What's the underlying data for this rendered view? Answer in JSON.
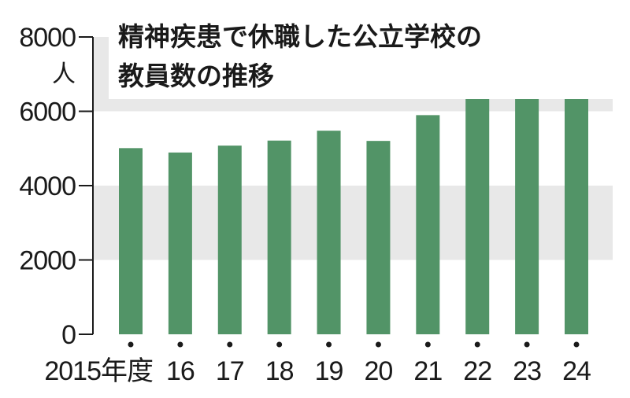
{
  "chart_data": {
    "type": "bar",
    "title": "精神疾患で休職した公立学校の教員数の推移",
    "title_lines": [
      "精神疾患で休職した公立学校の",
      "教員数の推移"
    ],
    "ylabel": "人",
    "categories": [
      "2015年度",
      "16",
      "17",
      "18",
      "19",
      "20",
      "21",
      "22",
      "23",
      "24"
    ],
    "values": [
      5009,
      4891,
      5077,
      5212,
      5478,
      5203,
      5897,
      6539,
      7119,
      7087
    ],
    "ylim": [
      0,
      8000
    ],
    "yticks": [
      0,
      2000,
      4000,
      6000,
      8000
    ],
    "ytick_labels": [
      "0",
      "2000",
      "4000",
      "6000",
      "8000"
    ],
    "grid": false,
    "bands": [
      [
        2000,
        4000
      ],
      [
        6000,
        8000
      ]
    ],
    "colors": {
      "bar": "#529467",
      "band": "#e8e8e8",
      "text": "#1a1a1a",
      "axis": "#1a1a1a"
    }
  }
}
